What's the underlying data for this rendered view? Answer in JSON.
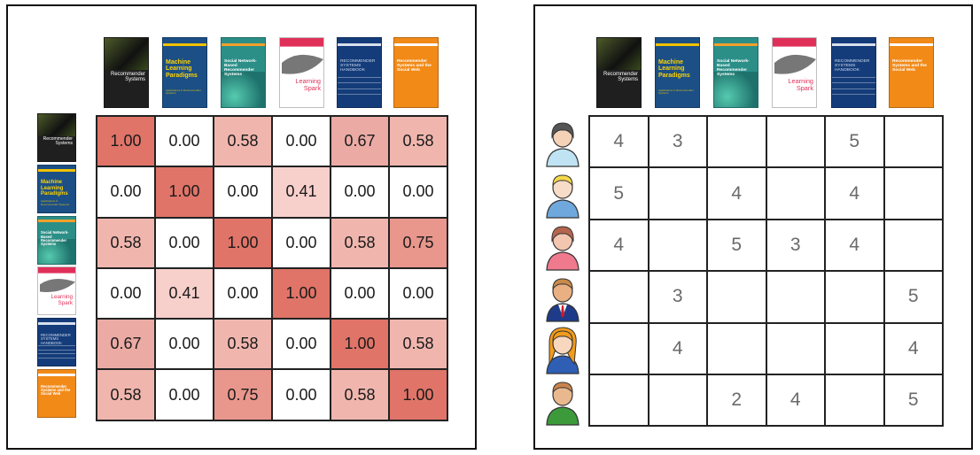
{
  "books": [
    {
      "id": "recommender-systems",
      "title": "Recommender Systems",
      "subtitle": "An Introduction",
      "bg": "#1f1f1f",
      "accent": "#6f7d3b",
      "fg": "#ffffff"
    },
    {
      "id": "ml-paradigms",
      "title": "Machine Learning Paradigms",
      "subtitle": "Applications in Recommender Systems",
      "bg": "#1c4f85",
      "accent": "#f2c200",
      "fg": "#ffd400"
    },
    {
      "id": "social-network-recsys",
      "title": "Social Network-Based Recommender Systems",
      "subtitle": "",
      "bg": "#2b8f88",
      "accent": "#f4a02a",
      "fg": "#ffffff"
    },
    {
      "id": "learning-spark",
      "title": "Learning Spark",
      "subtitle": "",
      "bg": "#ffffff",
      "accent": "#e0305a",
      "fg": "#e0305a"
    },
    {
      "id": "recsys-handbook",
      "title": "RECOMMENDER SYSTEMS HANDBOOK",
      "subtitle": "",
      "bg": "#143c7a",
      "accent": "#d8e0ee",
      "fg": "#cfd8ea"
    },
    {
      "id": "recsys-social-web",
      "title": "Recommender Systems and the Social Web",
      "subtitle": "",
      "bg": "#f28a18",
      "accent": "#ffffff",
      "fg": "#ffffff"
    }
  ],
  "similarity": {
    "values": [
      [
        "1.00",
        "0.00",
        "0.58",
        "0.00",
        "0.67",
        "0.58"
      ],
      [
        "0.00",
        "1.00",
        "0.00",
        "0.41",
        "0.00",
        "0.00"
      ],
      [
        "0.58",
        "0.00",
        "1.00",
        "0.00",
        "0.58",
        "0.75"
      ],
      [
        "0.00",
        "0.41",
        "0.00",
        "1.00",
        "0.00",
        "0.00"
      ],
      [
        "0.67",
        "0.00",
        "0.58",
        "0.00",
        "1.00",
        "0.58"
      ],
      [
        "0.58",
        "0.00",
        "0.75",
        "0.00",
        "0.58",
        "1.00"
      ]
    ],
    "colors": {
      "1.00": "#e07468",
      "0.75": "#e9968c",
      "0.67": "#ebaba4",
      "0.58": "#f0b6ae",
      "0.41": "#f7cfcb",
      "0.00": "#ffffff"
    }
  },
  "users": [
    {
      "id": "user-1",
      "hair": "#555555",
      "skin": "#f3d2b8",
      "shirt": "#bfe3f2",
      "gender": "female"
    },
    {
      "id": "user-2",
      "hair": "#f5d94a",
      "skin": "#f7dcc7",
      "shirt": "#6fa8dc",
      "gender": "male"
    },
    {
      "id": "user-3",
      "hair": "#b5654e",
      "skin": "#f3c6b0",
      "shirt": "#ef7a8e",
      "gender": "female"
    },
    {
      "id": "user-4",
      "hair": "#c88a4a",
      "skin": "#e8b083",
      "shirt": "#1e3b8a",
      "gender": "male-suit"
    },
    {
      "id": "user-5",
      "hair": "#f29b1c",
      "skin": "#f7d7be",
      "shirt": "#2f5fb5",
      "gender": "female-long"
    },
    {
      "id": "user-6",
      "hair": "#c9844e",
      "skin": "#e9b88f",
      "shirt": "#3c9a3a",
      "gender": "male-shirt"
    }
  ],
  "ratings": [
    [
      "4",
      "3",
      "",
      "",
      "5",
      ""
    ],
    [
      "5",
      "",
      "4",
      "",
      "4",
      ""
    ],
    [
      "4",
      "",
      "5",
      "3",
      "4",
      ""
    ],
    [
      "",
      "3",
      "",
      "",
      "",
      "5"
    ],
    [
      "",
      "4",
      "",
      "",
      "",
      "4"
    ],
    [
      "",
      "",
      "2",
      "4",
      "",
      "5"
    ]
  ]
}
